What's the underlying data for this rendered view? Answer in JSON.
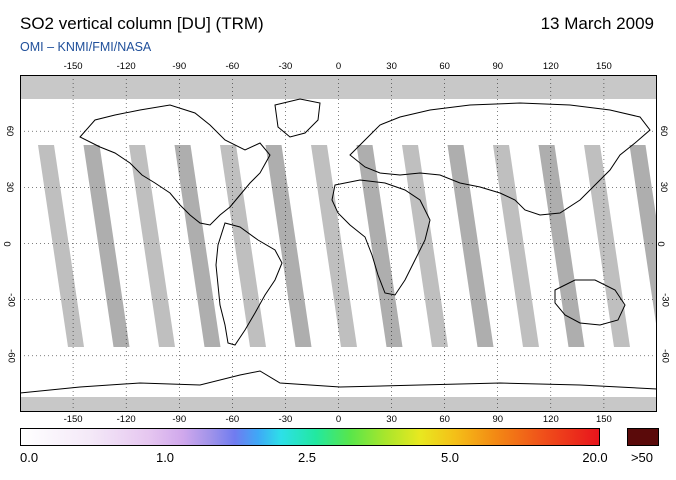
{
  "header": {
    "title": "SO2 vertical column [DU] (TRM)",
    "date": "13 March 2009",
    "credit": "OMI  –  KNMI/FMI/NASA"
  },
  "map": {
    "lon_ticks": [
      "-150",
      "-120",
      "-90",
      "-60",
      "-30",
      "0",
      "30",
      "60",
      "90",
      "120",
      "150"
    ],
    "lat_ticks": [
      "60",
      "30",
      "0",
      "-30",
      "-60"
    ],
    "lon_range": [
      -180,
      180
    ],
    "lat_range": [
      -90,
      90
    ],
    "gridlines": true,
    "projection": "equirectangular",
    "no_data_color": "#c8c8c8",
    "swath_gap_color": "#a0a0a0",
    "background_color": "#ffffff"
  },
  "colorbar": {
    "labels": [
      "0.0",
      "1.0",
      "2.5",
      "5.0",
      "20.0"
    ],
    "max_label": ">50",
    "unit": "DU",
    "colors": [
      "#ffffff",
      "#e6c7f0",
      "#9e92ea",
      "#2de0e8",
      "#59e64a",
      "#e8e820",
      "#f38a14",
      "#e8141c"
    ],
    "overflow_color": "#5a0a0a"
  }
}
